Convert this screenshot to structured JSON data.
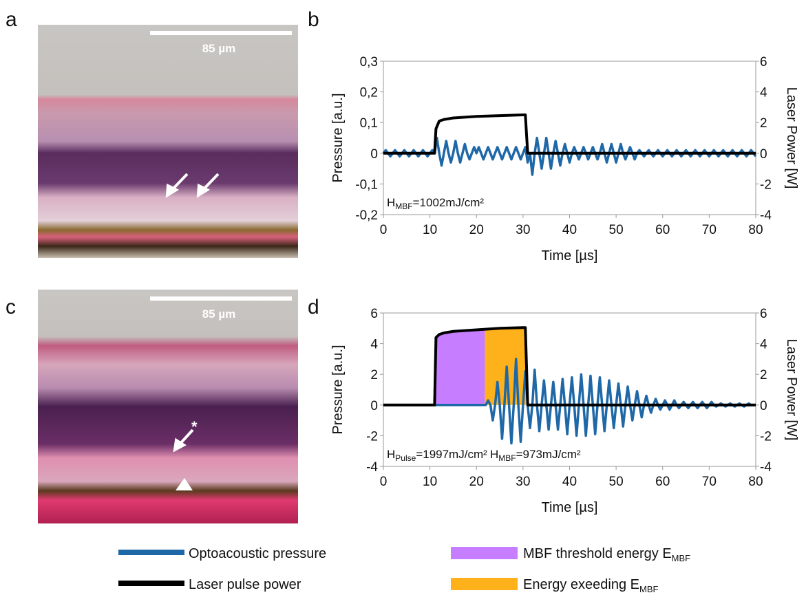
{
  "panel_labels": [
    "a",
    "b",
    "c",
    "d"
  ],
  "scale_bars": [
    "85 µm",
    "85 µm"
  ],
  "chart_data": [
    {
      "type": "line",
      "xlabel": "Time [µs]",
      "ylabel": "Pressure [a.u.]",
      "y2label": "Laser Power [W]",
      "xlim": [
        0,
        80
      ],
      "xticks": [
        0,
        10,
        20,
        30,
        40,
        50,
        60,
        70,
        80
      ],
      "ylim": [
        -0.2,
        0.3
      ],
      "yticks": [
        {
          "value": -0.2,
          "label": "-0,2"
        },
        {
          "value": -0.1,
          "label": "-0,1"
        },
        0,
        {
          "value": 0.1,
          "label": "0,1"
        },
        {
          "value": 0.2,
          "label": "0,2"
        },
        {
          "value": 0.3,
          "label": "0,3"
        }
      ],
      "y2lim": [
        -4,
        6
      ],
      "y2ticks": [
        -4,
        -2,
        0,
        2,
        4,
        6
      ],
      "annotations": [
        {
          "text": "H",
          "sub": "MBF",
          "rest": "=1002mJ/cm²"
        }
      ],
      "x": [
        0,
        0.5,
        1,
        1.5,
        2,
        2.5,
        3,
        3.5,
        4,
        4.5,
        5,
        5.5,
        6,
        6.5,
        7,
        7.5,
        8,
        8.5,
        9,
        9.5,
        10,
        10.5,
        11,
        11.5,
        12,
        12.5,
        13,
        13.5,
        14,
        14.5,
        15,
        15.5,
        16,
        16.5,
        17,
        17.5,
        18,
        18.5,
        19,
        19.5,
        20,
        20.5,
        21,
        21.5,
        22,
        22.5,
        23,
        23.5,
        24,
        24.5,
        25,
        25.5,
        26,
        26.5,
        27,
        27.5,
        28,
        28.5,
        29,
        29.5,
        30,
        30.5,
        31,
        31.5,
        32,
        32.5,
        33,
        33.5,
        34,
        34.5,
        35,
        35.5,
        36,
        36.5,
        37,
        37.5,
        38,
        38.5,
        39,
        39.5,
        40,
        40.5,
        41,
        41.5,
        42,
        42.5,
        43,
        43.5,
        44,
        44.5,
        45,
        45.5,
        46,
        46.5,
        47,
        47.5,
        48,
        48.5,
        49,
        49.5,
        50,
        50.5,
        51,
        51.5,
        52,
        52.5,
        53,
        53.5,
        54,
        54.5,
        55,
        55.5,
        56,
        56.5,
        57,
        57.5,
        58,
        58.5,
        59,
        59.5,
        60,
        60.5,
        61,
        61.5,
        62,
        62.5,
        63,
        63.5,
        64,
        64.5,
        65,
        65.5,
        66,
        66.5,
        67,
        67.5,
        68,
        68.5,
        69,
        69.5,
        70,
        70.5,
        71,
        71.5,
        72,
        72.5,
        73,
        73.5,
        74,
        74.5,
        75,
        75.5,
        76,
        76.5,
        77,
        77.5,
        78,
        78.5,
        79,
        79.5,
        80
      ],
      "series": [
        {
          "name": "Optoacoustic pressure",
          "color": "#1f68a8",
          "values": [
            0,
            0.01,
            0,
            -0.01,
            0,
            0.01,
            0,
            -0.01,
            0,
            0.01,
            0,
            -0.01,
            0,
            0.01,
            0,
            -0.01,
            0,
            0.01,
            0,
            -0.01,
            0,
            0.01,
            0,
            0.05,
            0,
            -0.04,
            0,
            0.04,
            0,
            -0.03,
            0,
            0.04,
            0,
            -0.03,
            0,
            0.03,
            0,
            -0.02,
            0,
            0.02,
            0,
            0.02,
            0,
            -0.02,
            0,
            0.02,
            0,
            -0.02,
            0,
            0.02,
            0,
            -0.02,
            0,
            0.02,
            0,
            -0.02,
            0,
            0.02,
            0,
            -0.02,
            0,
            0.02,
            -0.03,
            0,
            -0.07,
            0,
            0.05,
            0,
            -0.05,
            0,
            0.05,
            0,
            -0.05,
            0,
            0.04,
            0,
            -0.04,
            0,
            0.03,
            0,
            -0.03,
            0,
            0.02,
            0,
            -0.02,
            0,
            0.02,
            0,
            -0.02,
            0,
            0.02,
            0,
            -0.02,
            0,
            0.03,
            0,
            -0.03,
            0,
            0.03,
            0,
            -0.03,
            0,
            0.03,
            0,
            -0.02,
            0,
            0.02,
            0,
            -0.02,
            0,
            0.01,
            0,
            -0.01,
            0,
            0.01,
            0,
            -0.01,
            0,
            0.01,
            0,
            -0.01,
            0,
            0.01,
            0,
            -0.01,
            0,
            0.01,
            0,
            -0.01,
            0,
            0.01,
            0,
            -0.01,
            0,
            0.01,
            0,
            -0.01,
            0,
            0.01,
            0,
            -0.01,
            0,
            0.01,
            0,
            -0.01,
            0,
            0.01,
            0,
            -0.01,
            0,
            0.01,
            0,
            -0.01,
            0,
            0.01,
            0,
            -0.01,
            0,
            0.01,
            0,
            -0.01
          ]
        },
        {
          "name": "Laser pulse power",
          "color": "#000000",
          "axis": "y2",
          "x": [
            0,
            11,
            11.3,
            12,
            13,
            15,
            20,
            25,
            30,
            30.5,
            31,
            80
          ],
          "values": [
            0,
            0,
            1.6,
            2.1,
            2.2,
            2.3,
            2.4,
            2.45,
            2.5,
            2.5,
            0,
            0
          ]
        }
      ]
    },
    {
      "type": "line",
      "xlabel": "Time [µs]",
      "ylabel": "Pressure [a.u.]",
      "y2label": "Laser Power [W]",
      "xlim": [
        0,
        80
      ],
      "xticks": [
        0,
        10,
        20,
        30,
        40,
        50,
        60,
        70,
        80
      ],
      "ylim": [
        -4,
        6
      ],
      "yticks": [
        -4,
        -2,
        0,
        2,
        4,
        6
      ],
      "y2lim": [
        -4,
        6
      ],
      "y2ticks": [
        -4,
        -2,
        0,
        2,
        4,
        6
      ],
      "annotations": [
        {
          "text": "H",
          "sub": "Pulse",
          "rest": "=1997mJ/cm²"
        },
        {
          "text": "H",
          "sub": "MBF",
          "rest": "=973mJ/cm²"
        }
      ],
      "x": [
        0,
        0.5,
        1,
        1.5,
        2,
        2.5,
        3,
        3.5,
        4,
        4.5,
        5,
        5.5,
        6,
        6.5,
        7,
        7.5,
        8,
        8.5,
        9,
        9.5,
        10,
        10.5,
        11,
        11.5,
        12,
        12.5,
        13,
        13.5,
        14,
        14.5,
        15,
        15.5,
        16,
        16.5,
        17,
        17.5,
        18,
        18.5,
        19,
        19.5,
        20,
        20.5,
        21,
        21.5,
        22,
        22.5,
        23,
        23.5,
        24,
        24.5,
        25,
        25.5,
        26,
        26.5,
        27,
        27.5,
        28,
        28.5,
        29,
        29.5,
        30,
        30.5,
        31,
        31.5,
        32,
        32.5,
        33,
        33.5,
        34,
        34.5,
        35,
        35.5,
        36,
        36.5,
        37,
        37.5,
        38,
        38.5,
        39,
        39.5,
        40,
        40.5,
        41,
        41.5,
        42,
        42.5,
        43,
        43.5,
        44,
        44.5,
        45,
        45.5,
        46,
        46.5,
        47,
        47.5,
        48,
        48.5,
        49,
        49.5,
        50,
        50.5,
        51,
        51.5,
        52,
        52.5,
        53,
        53.5,
        54,
        54.5,
        55,
        55.5,
        56,
        56.5,
        57,
        57.5,
        58,
        58.5,
        59,
        59.5,
        60,
        60.5,
        61,
        61.5,
        62,
        62.5,
        63,
        63.5,
        64,
        64.5,
        65,
        65.5,
        66,
        66.5,
        67,
        67.5,
        68,
        68.5,
        69,
        69.5,
        70,
        70.5,
        71,
        71.5,
        72,
        72.5,
        73,
        73.5,
        74,
        74.5,
        75,
        75.5,
        76,
        76.5,
        77,
        77.5,
        78,
        78.5,
        79,
        79.5,
        80
      ],
      "series": [
        {
          "name": "MBF threshold energy E",
          "name_sub": "MBF",
          "color": "#c77dff",
          "axis": "y2",
          "fill": true,
          "x": [
            11.2,
            12,
            13,
            15,
            20,
            21.8
          ],
          "values": [
            4.3,
            4.6,
            4.7,
            4.8,
            4.9,
            4.9
          ]
        },
        {
          "name": "Energy exeeding  E",
          "name_sub": "MBF",
          "color": "#ffb11b",
          "axis": "y2",
          "fill": true,
          "x": [
            21.8,
            25,
            30,
            30.6
          ],
          "values": [
            4.9,
            5.0,
            5.05,
            5.05
          ]
        },
        {
          "color": "#1f68a8",
          "values": [
            0,
            0,
            0,
            0,
            0,
            0,
            0,
            0,
            0,
            0,
            0,
            0,
            0,
            0,
            0,
            0,
            0,
            0,
            0,
            0,
            0,
            0,
            0,
            0,
            0,
            0,
            0,
            0,
            0,
            0,
            0,
            0,
            0,
            0,
            0,
            0,
            0,
            0,
            0,
            0,
            0,
            0,
            0,
            0,
            0,
            0.3,
            0,
            -1,
            0,
            1.5,
            0,
            -2.2,
            0,
            2.5,
            0,
            -2.5,
            0,
            3,
            0,
            -2.4,
            0,
            2.2,
            0,
            -1.5,
            0,
            2.3,
            0,
            -1.7,
            0,
            1.6,
            0,
            -1.6,
            0,
            1.5,
            0,
            -1.6,
            0,
            1.7,
            0,
            -1.9,
            0,
            1.8,
            0,
            -2,
            0,
            2,
            0,
            -2,
            0,
            1.9,
            0,
            -1.9,
            0,
            1.8,
            0,
            -1.7,
            0,
            1.6,
            0,
            -1.5,
            0,
            1.4,
            0,
            -1.4,
            0,
            1.2,
            0,
            -1,
            0,
            0.9,
            0,
            -0.8,
            0,
            0.6,
            0,
            -0.5,
            0,
            0.4,
            0,
            -0.3,
            0,
            0.3,
            0,
            -0.3,
            0,
            0.3,
            0,
            -0.2,
            0,
            0.2,
            0,
            -0.2,
            0,
            0.2,
            0,
            -0.2,
            0,
            0.2,
            0,
            -0.2,
            0,
            0.2,
            0,
            -0.1,
            0,
            0.1,
            0,
            -0.1,
            0,
            0.1,
            0,
            -0.1,
            0,
            0.1,
            0,
            -0.1,
            0,
            0.1,
            0,
            0,
            0
          ]
        },
        {
          "color": "#000000",
          "axis": "y2",
          "x": [
            0,
            11,
            11.3,
            12,
            13,
            15,
            20,
            25,
            30,
            30.5,
            31,
            80
          ],
          "values": [
            0,
            0,
            4.4,
            4.6,
            4.7,
            4.8,
            4.9,
            5.0,
            5.05,
            5.05,
            0,
            0
          ]
        }
      ]
    }
  ]
}
